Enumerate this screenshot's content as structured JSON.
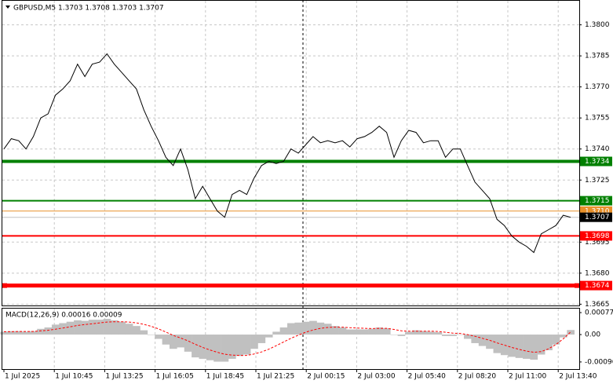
{
  "chart_data": {
    "type": "line",
    "title": "GBPUSD,M5  1.3703 1.3708 1.3703 1.3707",
    "x_axis_labels": [
      "1 Jul 2025",
      "1 Jul 10:45",
      "1 Jul 13:25",
      "1 Jul 16:05",
      "1 Jul 18:45",
      "1 Jul 21:25",
      "2 Jul 00:15",
      "2 Jul 03:00",
      "2 Jul 05:40",
      "2 Jul 08:20",
      "2 Jul 11:00",
      "2 Jul 13:40"
    ],
    "color": "#000000",
    "values": [
      1.374,
      1.3745,
      1.3744,
      1.374,
      1.3746,
      1.3755,
      1.3757,
      1.3766,
      1.3769,
      1.3773,
      1.3781,
      1.3775,
      1.3781,
      1.3782,
      1.3786,
      1.3781,
      1.3777,
      1.3773,
      1.3769,
      1.3759,
      1.3751,
      1.3744,
      1.3736,
      1.3732,
      1.374,
      1.373,
      1.3716,
      1.3722,
      1.3716,
      1.371,
      1.3707,
      1.3718,
      1.372,
      1.3718,
      1.3726,
      1.3732,
      1.3734,
      1.3733,
      1.3734,
      1.374,
      1.3738,
      1.3742,
      1.3746,
      1.3743,
      1.3744,
      1.3743,
      1.3744,
      1.3741,
      1.3745,
      1.3746,
      1.3748,
      1.3751,
      1.3748,
      1.3736,
      1.3744,
      1.3749,
      1.3748,
      1.3743,
      1.3744,
      1.3744,
      1.3736,
      1.374,
      1.374,
      1.3732,
      1.3724,
      1.372,
      1.3716,
      1.3706,
      1.3703,
      1.3698,
      1.3695,
      1.3693,
      1.369,
      1.3699,
      1.3701,
      1.3703,
      1.3708,
      1.3707
    ],
    "ylim": [
      1.3664,
      1.3812
    ],
    "yticks": [
      {
        "value": 1.38,
        "label": "1.3800"
      },
      1.3785,
      {
        "value": 1.377,
        "label": "1.3770"
      },
      1.3755,
      {
        "value": 1.374,
        "label": "1.3740"
      },
      1.3725,
      1.3695,
      {
        "value": 1.368,
        "label": "1.3680"
      },
      1.3665
    ],
    "grid": true,
    "levels": [
      {
        "value": 1.3734,
        "color": "#008000",
        "width": 4
      },
      {
        "value": 1.3715,
        "color": "#008000",
        "width": 2
      },
      {
        "value": 1.371,
        "label": "1.3710",
        "color": "#e8902a",
        "width": 1
      },
      {
        "value": 1.3707,
        "color": "#c0c0c0",
        "width": 1,
        "label_color": "#000000"
      },
      {
        "value": 1.3698,
        "color": "#ff0000",
        "width": 2
      },
      {
        "value": 1.3674,
        "color": "#ff0000",
        "width": 5
      }
    ],
    "macd": {
      "title": "MACD(12,26,9) 0.00016 0.00009",
      "histogram_color": "#c0c0c0",
      "signal_color": "#ff0000",
      "histogram": [
        0.0001,
        0.00012,
        0.00012,
        0.0001,
        0.00012,
        0.0002,
        0.00025,
        0.00035,
        0.0004,
        0.00045,
        0.0005,
        0.00048,
        0.00052,
        0.00052,
        0.00055,
        0.0005,
        0.00045,
        0.00038,
        0.0003,
        0.00015,
        0.0,
        -0.00015,
        -0.00035,
        -0.0005,
        -0.00045,
        -0.0006,
        -0.0008,
        -0.00085,
        -0.0009,
        -0.00095,
        -0.00095,
        -0.00085,
        -0.00075,
        -0.0007,
        -0.0005,
        -0.0003,
        -0.0001,
        0.0001,
        0.00025,
        0.0004,
        0.00042,
        0.00045,
        0.00048,
        0.00042,
        0.00038,
        0.0003,
        0.00025,
        0.00018,
        0.00018,
        0.00018,
        0.0002,
        0.00025,
        0.00022,
        0.0,
        -5e-05,
        0.0001,
        0.00015,
        0.00012,
        0.0001,
        8e-05,
        -5e-05,
        -5e-05,
        0.0,
        -0.00015,
        -0.0003,
        -0.0004,
        -0.0005,
        -0.00065,
        -0.00072,
        -0.00078,
        -0.00082,
        -0.00085,
        -0.00088,
        -0.0007,
        -0.00055,
        -0.00035,
        -0.0001,
        0.00016
      ],
      "signal": [
        0.0001,
        0.0001,
        0.00011,
        0.00011,
        0.00011,
        0.00013,
        0.00015,
        0.00019,
        0.00023,
        0.00027,
        0.00032,
        0.00035,
        0.00038,
        0.00041,
        0.00044,
        0.00045,
        0.00045,
        0.00044,
        0.00041,
        0.00036,
        0.00029,
        0.0002,
        9e-05,
        -3e-05,
        -0.00012,
        -0.00022,
        -0.00034,
        -0.00045,
        -0.00054,
        -0.00062,
        -0.00069,
        -0.00072,
        -0.00073,
        -0.00073,
        -0.00068,
        -0.00061,
        -0.00051,
        -0.00039,
        -0.00026,
        -0.00013,
        -2e-05,
        8e-05,
        0.00016,
        0.00022,
        0.00025,
        0.00026,
        0.00026,
        0.00024,
        0.00023,
        0.00022,
        0.00021,
        0.00022,
        0.00022,
        0.00018,
        0.00013,
        0.00012,
        0.00012,
        0.00012,
        0.00012,
        0.00011,
        8e-05,
        5e-05,
        4e-05,
        0.0,
        -6e-05,
        -0.00013,
        -0.0002,
        -0.00029,
        -0.00037,
        -0.00045,
        -0.00052,
        -0.00058,
        -0.00062,
        -0.0006,
        -0.0005,
        -0.00035,
        -0.00015,
        9e-05
      ],
      "ylim": [
        -0.00121,
        0.00091
      ],
      "yticks": [
        0.00077,
        {
          "value": 0,
          "label": "0.00"
        },
        -0.00096
      ]
    }
  }
}
